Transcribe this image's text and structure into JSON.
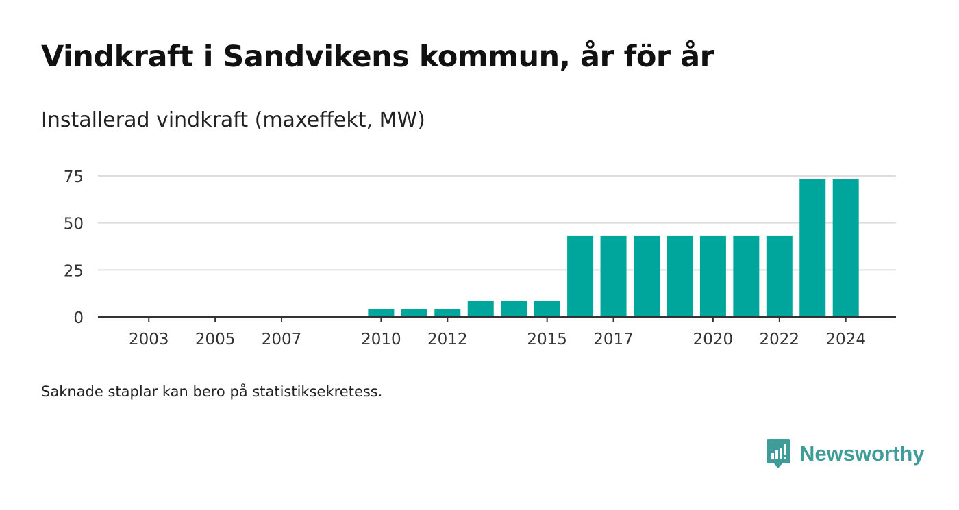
{
  "title": "Vindkraft i Sandvikens kommun, år för år",
  "subtitle": "Installerad vindkraft (maxeffekt, MW)",
  "footnote": "Saknade staplar kan bero på statistiksekretess.",
  "brand": {
    "name": "Newsworthy",
    "color": "#3f9c98",
    "icon": "bar-chart-bubble-icon"
  },
  "colors": {
    "bar": "#00a69c",
    "grid": "#dddddd",
    "axis": "#333333",
    "text": "#333333"
  },
  "chart_data": {
    "type": "bar",
    "categories": [
      "2002",
      "2003",
      "2004",
      "2005",
      "2006",
      "2007",
      "2008",
      "2009",
      "2010",
      "2011",
      "2012",
      "2013",
      "2014",
      "2015",
      "2016",
      "2017",
      "2018",
      "2019",
      "2020",
      "2021",
      "2022",
      "2023",
      "2024"
    ],
    "x_tick_labels": [
      "2003",
      "2005",
      "2007",
      "2010",
      "2012",
      "2015",
      "2017",
      "2020",
      "2022",
      "2024"
    ],
    "values": [
      0,
      0,
      0,
      0,
      0,
      0,
      0,
      0,
      4,
      4,
      4,
      8.5,
      8.5,
      8.5,
      43,
      43,
      43,
      43,
      43,
      43,
      43,
      73.5,
      73.5
    ],
    "y_ticks": [
      0,
      25,
      50,
      75
    ],
    "ylim": [
      0,
      75
    ],
    "grid": true,
    "legend": "none"
  }
}
